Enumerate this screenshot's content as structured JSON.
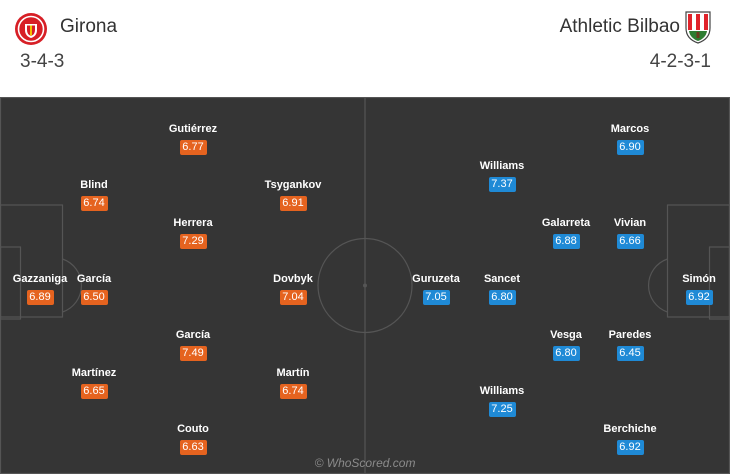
{
  "home": {
    "name": "Girona",
    "formation": "3-4-3",
    "players": [
      {
        "name": "Gazzaniga",
        "rating": "6.89"
      },
      {
        "name": "García",
        "rating": "6.50"
      },
      {
        "name": "Blind",
        "rating": "6.74"
      },
      {
        "name": "Martínez",
        "rating": "6.65"
      },
      {
        "name": "Gutiérrez",
        "rating": "6.77"
      },
      {
        "name": "Herrera",
        "rating": "7.29"
      },
      {
        "name": "García",
        "rating": "7.49"
      },
      {
        "name": "Couto",
        "rating": "6.63"
      },
      {
        "name": "Tsygankov",
        "rating": "6.91"
      },
      {
        "name": "Dovbyk",
        "rating": "7.04"
      },
      {
        "name": "Martín",
        "rating": "6.74"
      }
    ]
  },
  "away": {
    "name": "Athletic Bilbao",
    "formation": "4-2-3-1",
    "players": [
      {
        "name": "Simón",
        "rating": "6.92"
      },
      {
        "name": "Marcos",
        "rating": "6.90"
      },
      {
        "name": "Vivian",
        "rating": "6.66"
      },
      {
        "name": "Paredes",
        "rating": "6.45"
      },
      {
        "name": "Berchiche",
        "rating": "6.92"
      },
      {
        "name": "Galarreta",
        "rating": "6.88"
      },
      {
        "name": "Vesga",
        "rating": "6.80"
      },
      {
        "name": "Williams",
        "rating": "7.37"
      },
      {
        "name": "Sancet",
        "rating": "6.80"
      },
      {
        "name": "Williams",
        "rating": "7.25"
      },
      {
        "name": "Guruzeta",
        "rating": "7.05"
      }
    ]
  },
  "watermark": "© WhoScored.com",
  "colors": {
    "pitch": "#353535",
    "lines": "#555555",
    "home_rating": "#e5631f",
    "away_rating": "#1f8ad6"
  },
  "icons": {
    "home_crest": "girona-crest-icon",
    "away_crest": "athletic-bilbao-crest-icon"
  }
}
